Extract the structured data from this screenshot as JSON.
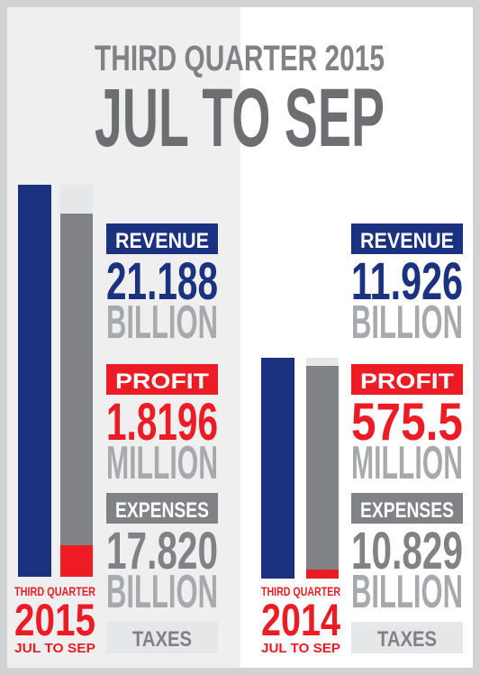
{
  "header": {
    "title": "THIRD QUARTER 2015",
    "subtitle": "JUL TO SEP"
  },
  "panels": [
    {
      "period": "THIRD QUARTER",
      "year": "2015",
      "months": "JUL TO SEP",
      "revenue": {
        "label": "REVENUE",
        "value": "21.188",
        "unit": "BILLION"
      },
      "profit": {
        "label": "PROFIT",
        "value": "1.8196",
        "unit": "MILLION"
      },
      "expenses": {
        "label": "EXPENSES",
        "value": "17.820",
        "unit": "BILLION"
      },
      "taxes": "TAXES"
    },
    {
      "period": "THIRD QUARTER",
      "year": "2014",
      "months": "JUL TO SEP",
      "revenue": {
        "label": "REVENUE",
        "value": "11.926",
        "unit": "BILLION"
      },
      "profit": {
        "label": "PROFIT",
        "value": "575.5",
        "unit": "MILLION"
      },
      "expenses": {
        "label": "EXPENSES",
        "value": "10.829",
        "unit": "BILLION"
      },
      "taxes": "TAXES"
    }
  ]
}
